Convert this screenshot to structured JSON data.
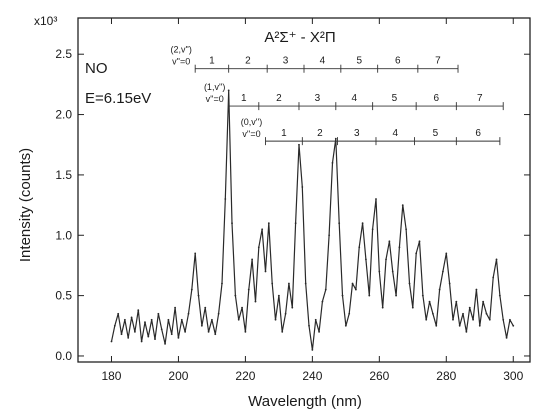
{
  "chart_data": {
    "type": "line",
    "title": "",
    "xlabel": "Wavelength (nm)",
    "ylabel": "Intensity (counts)",
    "y_multiplier": "x10³",
    "xlim": [
      170,
      305
    ],
    "ylim": [
      -0.05,
      2.8
    ],
    "xticks": [
      180,
      200,
      220,
      240,
      260,
      280,
      300
    ],
    "yticks": [
      0.0,
      0.5,
      1.0,
      1.5,
      2.0,
      2.5
    ],
    "ytick_labels": [
      "0.0",
      "0.5",
      "1.0",
      "1.5",
      "2.0",
      "2.5"
    ],
    "annotations": {
      "molecule": "NO",
      "energy": "E=6.15eV",
      "transition": "A²Σ⁺ - X²Π"
    },
    "progressions": [
      {
        "label_top": "(2,v'')",
        "label_bottom": "v''=0",
        "numbers": [
          "1",
          "2",
          "3",
          "4",
          "5",
          "6",
          "7"
        ]
      },
      {
        "label_top": "(1,v'')",
        "label_bottom": "v''=0",
        "numbers": [
          "1",
          "2",
          "3",
          "4",
          "5",
          "6",
          "7"
        ]
      },
      {
        "label_top": "(0,v'')",
        "label_bottom": "v''=0",
        "numbers": [
          "1",
          "2",
          "3",
          "4",
          "5",
          "6"
        ]
      }
    ],
    "progression_wavelengths": [
      [
        205,
        215,
        226.5,
        237.5,
        248.5,
        259.5,
        271.5,
        283.5
      ],
      [
        215,
        224,
        236,
        247,
        258,
        271,
        283,
        297
      ],
      [
        226,
        237,
        247.5,
        259,
        270.5,
        283,
        296
      ]
    ],
    "series": [
      {
        "x": [
          180,
          181,
          182,
          183,
          184,
          185,
          186,
          187,
          188,
          189,
          190,
          191,
          192,
          193,
          194,
          195,
          196,
          197,
          198,
          199,
          200,
          201,
          202,
          203,
          204,
          205,
          206,
          207,
          208,
          209,
          210,
          211,
          212,
          213,
          214,
          215,
          216,
          217,
          218,
          219,
          220,
          221,
          222,
          223,
          224,
          225,
          226,
          227,
          228,
          229,
          230,
          231,
          232,
          233,
          234,
          235,
          236,
          237,
          238,
          239,
          240,
          241,
          242,
          243,
          244,
          245,
          246,
          247,
          248,
          249,
          250,
          251,
          252,
          253,
          254,
          255,
          256,
          257,
          258,
          259,
          260,
          261,
          262,
          263,
          264,
          265,
          266,
          267,
          268,
          269,
          270,
          271,
          272,
          273,
          274,
          275,
          276,
          277,
          278,
          279,
          280,
          281,
          282,
          283,
          284,
          285,
          286,
          287,
          288,
          289,
          290,
          291,
          292,
          293,
          294,
          295,
          296,
          297,
          298,
          299,
          300
        ],
        "values": [
          0.12,
          0.25,
          0.35,
          0.18,
          0.3,
          0.15,
          0.32,
          0.2,
          0.38,
          0.12,
          0.28,
          0.16,
          0.3,
          0.14,
          0.35,
          0.22,
          0.1,
          0.3,
          0.18,
          0.4,
          0.15,
          0.3,
          0.2,
          0.35,
          0.55,
          0.85,
          0.5,
          0.25,
          0.4,
          0.2,
          0.3,
          0.18,
          0.35,
          0.6,
          1.3,
          2.2,
          1.1,
          0.5,
          0.3,
          0.4,
          0.2,
          0.55,
          0.8,
          0.45,
          0.9,
          1.05,
          0.7,
          1.1,
          0.6,
          0.3,
          0.5,
          0.2,
          0.35,
          0.6,
          0.4,
          1.1,
          1.75,
          1.4,
          0.6,
          0.25,
          0.05,
          0.3,
          0.2,
          0.45,
          0.55,
          1.0,
          1.6,
          1.8,
          1.1,
          0.5,
          0.25,
          0.35,
          0.6,
          0.55,
          0.9,
          1.1,
          0.8,
          0.5,
          1.05,
          1.3,
          0.7,
          0.4,
          0.8,
          0.95,
          0.7,
          0.5,
          0.9,
          1.25,
          1.05,
          0.6,
          0.4,
          0.85,
          0.95,
          0.5,
          0.3,
          0.45,
          0.35,
          0.25,
          0.55,
          0.7,
          0.85,
          0.6,
          0.3,
          0.45,
          0.25,
          0.35,
          0.2,
          0.4,
          0.3,
          0.55,
          0.25,
          0.45,
          0.35,
          0.3,
          0.65,
          0.8,
          0.5,
          0.3,
          0.15,
          0.3,
          0.25
        ]
      }
    ],
    "grid": false,
    "legend": "none",
    "line_color": "#2a2a2a"
  }
}
